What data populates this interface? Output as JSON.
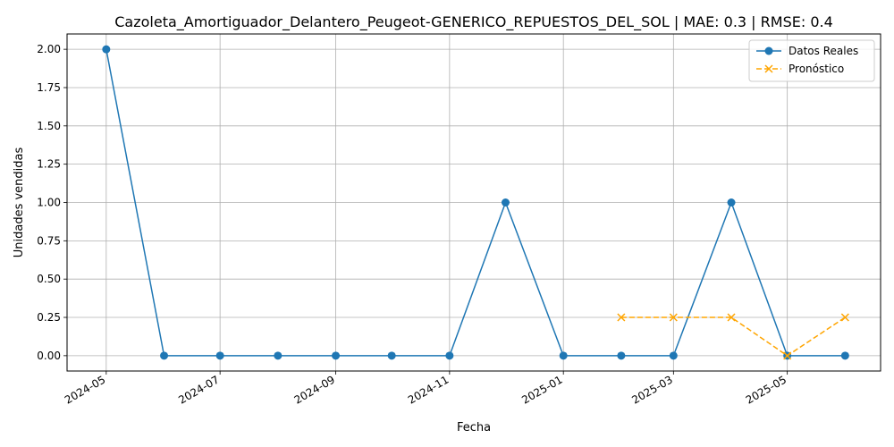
{
  "chart_data": {
    "type": "line",
    "title": "Cazoleta_Amortiguador_Delantero_Peugeot-GENERICO_REPUESTOS_DEL_SOL | MAE: 0.3 | RMSE: 0.4",
    "xlabel": "Fecha",
    "ylabel": "Unidades vendidas",
    "ylim": [
      -0.1,
      2.1
    ],
    "xlim": [
      "2024-04-10",
      "2025-06-20"
    ],
    "grid": true,
    "legend_position": "top-right",
    "x_ticks": [
      "2024-05",
      "2024-07",
      "2024-09",
      "2024-11",
      "2025-01",
      "2025-03",
      "2025-05"
    ],
    "y_ticks": [
      "0.00",
      "0.25",
      "0.50",
      "0.75",
      "1.00",
      "1.25",
      "1.50",
      "1.75",
      "2.00"
    ],
    "series": [
      {
        "name": "Datos Reales",
        "color": "#1f77b4",
        "style": "solid",
        "marker": "circle",
        "x": [
          "2024-05-01",
          "2024-06-01",
          "2024-07-01",
          "2024-08-01",
          "2024-09-01",
          "2024-10-01",
          "2024-11-01",
          "2024-12-01",
          "2025-01-01",
          "2025-02-01",
          "2025-03-01",
          "2025-04-01",
          "2025-05-01",
          "2025-06-01"
        ],
        "values": [
          2,
          0,
          0,
          0,
          0,
          0,
          0,
          1,
          0,
          0,
          0,
          1,
          0,
          0
        ]
      },
      {
        "name": "Pronóstico",
        "color": "#ffa500",
        "style": "dashed",
        "marker": "x",
        "x": [
          "2025-02-01",
          "2025-03-01",
          "2025-04-01",
          "2025-05-01",
          "2025-06-01"
        ],
        "values": [
          0.25,
          0.25,
          0.25,
          0,
          0.25
        ]
      }
    ]
  }
}
